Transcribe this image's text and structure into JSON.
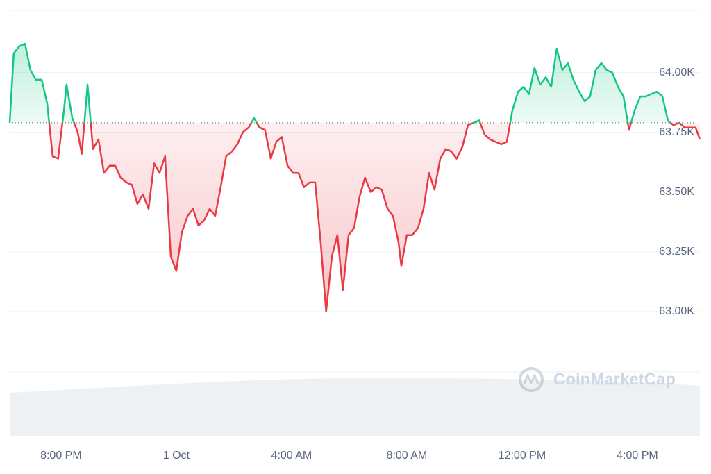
{
  "chart_data": {
    "type": "line",
    "x": [
      -1.78,
      -1.64,
      -1.45,
      -1.25,
      -1.06,
      -0.87,
      -0.67,
      -0.48,
      -0.29,
      -0.1,
      0.1,
      0.19,
      0.39,
      0.58,
      0.72,
      0.92,
      1.11,
      1.3,
      1.49,
      1.69,
      1.88,
      2.07,
      2.27,
      2.46,
      2.65,
      2.84,
      3.04,
      3.23,
      3.42,
      3.61,
      3.81,
      4.0,
      4.19,
      4.39,
      4.58,
      4.77,
      4.96,
      5.16,
      5.35,
      5.54,
      5.73,
      5.93,
      6.12,
      6.31,
      6.51,
      6.7,
      6.89,
      7.08,
      7.28,
      7.47,
      7.66,
      7.86,
      8.05,
      8.24,
      8.43,
      8.63,
      8.82,
      9.01,
      9.2,
      9.4,
      9.59,
      9.78,
      9.98,
      10.17,
      10.36,
      10.55,
      10.75,
      10.94,
      11.13,
      11.33,
      11.52,
      11.71,
      11.81,
      12.0,
      12.19,
      12.39,
      12.58,
      12.77,
      12.96,
      13.16,
      13.35,
      13.54,
      13.73,
      13.93,
      14.12,
      14.31,
      14.51,
      14.7,
      14.89,
      15.08,
      15.28,
      15.47,
      15.66,
      15.86,
      16.05,
      16.24,
      16.43,
      16.63,
      16.82,
      17.01,
      17.2,
      17.4,
      17.59,
      17.78,
      17.98,
      18.17,
      18.36,
      18.55,
      18.75,
      18.94,
      19.13,
      19.33,
      19.52,
      19.71,
      19.9,
      20.1,
      20.29,
      20.48,
      20.67,
      20.87,
      21.06,
      21.25,
      21.45,
      21.64,
      21.83,
      22.02,
      22.17
    ],
    "series": [
      {
        "values": [
          63.79,
          64.08,
          64.11,
          64.12,
          64.01,
          63.97,
          63.97,
          63.87,
          63.65,
          63.64,
          63.84,
          63.95,
          63.81,
          63.75,
          63.66,
          63.95,
          63.68,
          63.72,
          63.58,
          63.61,
          63.61,
          63.56,
          63.54,
          63.53,
          63.45,
          63.49,
          63.43,
          63.62,
          63.58,
          63.65,
          63.23,
          63.17,
          63.33,
          63.4,
          63.43,
          63.36,
          63.38,
          63.43,
          63.4,
          63.52,
          63.65,
          63.67,
          63.7,
          63.75,
          63.77,
          63.81,
          63.77,
          63.76,
          63.64,
          63.71,
          63.73,
          63.61,
          63.58,
          63.58,
          63.52,
          63.54,
          63.54,
          63.29,
          63.0,
          63.23,
          63.32,
          63.09,
          63.32,
          63.35,
          63.48,
          63.56,
          63.5,
          63.52,
          63.51,
          63.43,
          63.4,
          63.29,
          63.19,
          63.32,
          63.32,
          63.35,
          63.43,
          63.58,
          63.51,
          63.64,
          63.68,
          63.67,
          63.64,
          63.69,
          63.78,
          63.79,
          63.8,
          63.74,
          63.72,
          63.71,
          63.7,
          63.71,
          63.84,
          63.92,
          63.94,
          63.91,
          64.02,
          63.95,
          63.98,
          63.94,
          64.1,
          64.01,
          64.04,
          63.97,
          63.92,
          63.88,
          63.9,
          64.01,
          64.04,
          64.01,
          64.0,
          63.94,
          63.9,
          63.76,
          63.84,
          63.9,
          63.9,
          63.91,
          63.92,
          63.9,
          63.8,
          63.78,
          63.79,
          63.77,
          63.77,
          63.77,
          63.72
        ]
      }
    ],
    "reference_line": 63.79,
    "up_color": "#16c784",
    "down_color": "#ea3943",
    "xlim": [
      -1.78,
      22.17
    ],
    "xticks": [
      {
        "value": 0,
        "label": "8:00 PM"
      },
      {
        "value": 4,
        "label": "1 Oct"
      },
      {
        "value": 8,
        "label": "4:00 AM"
      },
      {
        "value": 12,
        "label": "8:00 AM"
      },
      {
        "value": 16,
        "label": "12:00 PM"
      },
      {
        "value": 20,
        "label": "4:00 PM"
      }
    ],
    "ylim": [
      62.75,
      64.26
    ],
    "yticks": [
      {
        "value": 63.0,
        "label": "63.00K"
      },
      {
        "value": 63.25,
        "label": "63.25K"
      },
      {
        "value": 63.5,
        "label": "63.50K"
      },
      {
        "value": 63.75,
        "label": "63.75K"
      },
      {
        "value": 64.0,
        "label": "64.00K"
      }
    ],
    "grid": true,
    "watermark": "CoinMarketCap"
  }
}
